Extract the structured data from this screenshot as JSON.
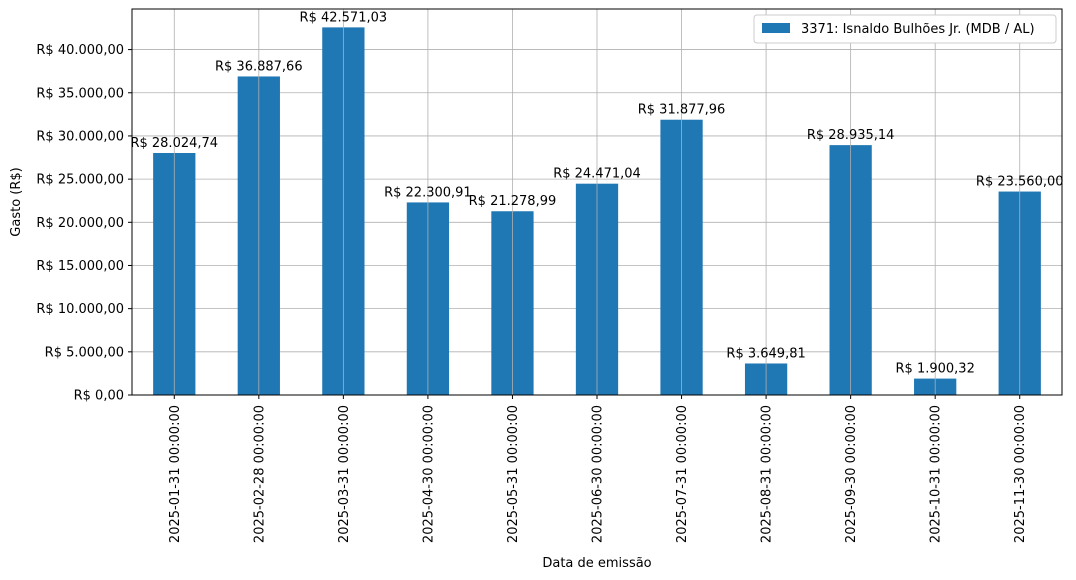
{
  "chart_data": {
    "type": "bar",
    "xlabel": "Data de emissão",
    "ylabel": "Gasto (R$)",
    "categories": [
      "2025-01-31 00:00:00",
      "2025-02-28 00:00:00",
      "2025-03-31 00:00:00",
      "2025-04-30 00:00:00",
      "2025-05-31 00:00:00",
      "2025-06-30 00:00:00",
      "2025-07-31 00:00:00",
      "2025-08-31 00:00:00",
      "2025-09-30 00:00:00",
      "2025-10-31 00:00:00",
      "2025-11-30 00:00:00"
    ],
    "series": [
      {
        "name": "3371: Isnaldo Bulhões Jr. (MDB / AL)",
        "color": "#1f77b4",
        "values": [
          28024.74,
          36887.66,
          42571.03,
          22300.91,
          21278.99,
          24471.04,
          31877.96,
          3649.81,
          28935.14,
          1900.32,
          23560.0
        ]
      }
    ],
    "data_labels": [
      "R$ 28.024,74",
      "R$ 36.887,66",
      "R$ 42.571,03",
      "R$ 22.300,91",
      "R$ 21.278,99",
      "R$ 24.471,04",
      "R$ 31.877,96",
      "R$ 3.649,81",
      "R$ 28.935,14",
      "R$ 1.900,32",
      "R$ 23.560,00"
    ],
    "yticks": [
      0,
      5000,
      10000,
      15000,
      20000,
      25000,
      30000,
      35000,
      40000
    ],
    "ytick_labels": [
      "R$ 0,00",
      "R$ 5.000,00",
      "R$ 10.000,00",
      "R$ 15.000,00",
      "R$ 20.000,00",
      "R$ 25.000,00",
      "R$ 30.000,00",
      "R$ 35.000,00",
      "R$ 40.000,00"
    ],
    "ylim": [
      0,
      44700
    ],
    "grid": true,
    "legend_position": "top-right"
  }
}
